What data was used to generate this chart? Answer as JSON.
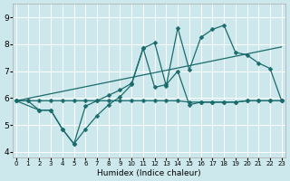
{
  "xlabel": "Humidex (Indice chaleur)",
  "bg_color": "#cde8ec",
  "grid_color": "#b8d8dc",
  "line_color": "#1a6b6b",
  "xlim": [
    -0.3,
    23.3
  ],
  "ylim": [
    3.8,
    9.5
  ],
  "xticks": [
    0,
    1,
    2,
    3,
    4,
    5,
    6,
    7,
    8,
    9,
    10,
    11,
    12,
    13,
    14,
    15,
    16,
    17,
    18,
    19,
    20,
    21,
    22,
    23
  ],
  "yticks": [
    4,
    5,
    6,
    7,
    8,
    9
  ],
  "line_flat_x": [
    0,
    1,
    2,
    3,
    4,
    5,
    6,
    7,
    8,
    9,
    10,
    11,
    12,
    13,
    14,
    15,
    16,
    17,
    18,
    19,
    20,
    21,
    22,
    23
  ],
  "line_flat_y": [
    5.9,
    5.9,
    5.9,
    5.9,
    5.9,
    5.9,
    5.9,
    5.9,
    5.9,
    5.9,
    5.9,
    5.9,
    5.9,
    5.9,
    5.9,
    5.85,
    5.85,
    5.85,
    5.85,
    5.85,
    5.9,
    5.9,
    5.9,
    5.9
  ],
  "line_zigzag_x": [
    0,
    1,
    2,
    3,
    4,
    5,
    6,
    7,
    8,
    9,
    10,
    11,
    12,
    13,
    14,
    15,
    16,
    17,
    18,
    19,
    20,
    21,
    22,
    23
  ],
  "line_zigzag_y": [
    5.9,
    5.9,
    5.55,
    5.55,
    4.85,
    4.3,
    4.85,
    5.35,
    5.75,
    6.05,
    6.5,
    7.85,
    6.4,
    6.5,
    7.0,
    5.75,
    5.85,
    5.85,
    5.85,
    5.85,
    5.9,
    5.9,
    5.9,
    5.9
  ],
  "line_peaks_x": [
    0,
    2,
    3,
    4,
    5,
    6,
    7,
    8,
    9,
    10,
    11,
    12,
    13,
    14,
    15,
    16,
    17,
    18,
    19,
    20,
    21,
    22,
    23
  ],
  "line_peaks_y": [
    5.9,
    5.55,
    5.55,
    4.85,
    4.3,
    5.7,
    5.9,
    6.1,
    6.3,
    6.55,
    7.85,
    8.05,
    6.45,
    8.6,
    7.05,
    8.25,
    8.55,
    8.7,
    7.7,
    7.6,
    7.3,
    7.1,
    5.9
  ],
  "trend_x": [
    0,
    23
  ],
  "trend_y": [
    5.9,
    7.9
  ]
}
